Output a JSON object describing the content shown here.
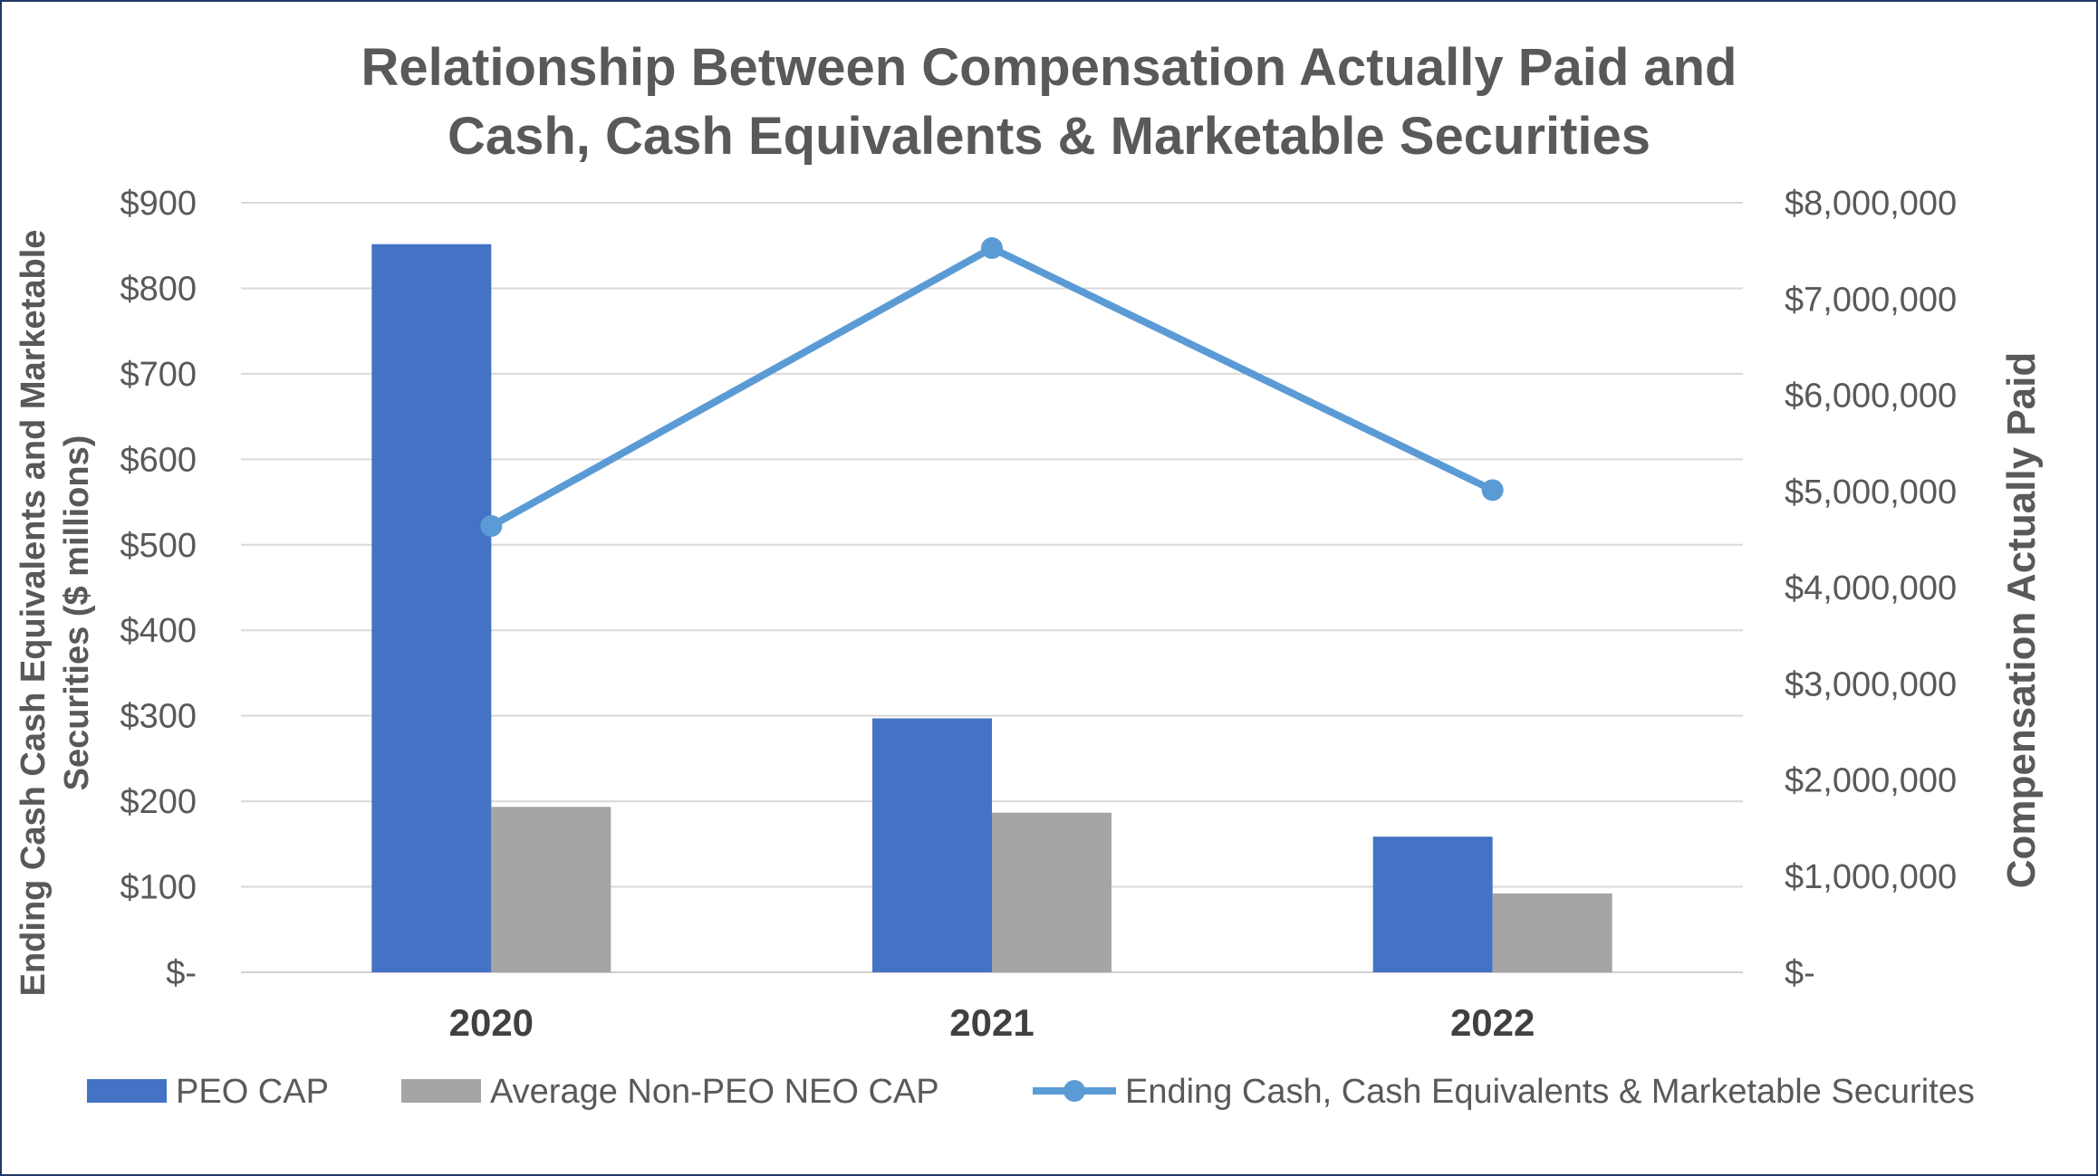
{
  "chart_data": {
    "type": "bar",
    "title_lines": [
      "Relationship Between Compensation Actually Paid and",
      "Cash, Cash Equivalents & Marketable Securities"
    ],
    "categories": [
      "2020",
      "2021",
      "2022"
    ],
    "series": [
      {
        "name": "PEO CAP",
        "type": "bar",
        "axis": "right",
        "color": "#4472c4",
        "values": [
          7570000,
          2640000,
          1410000
        ]
      },
      {
        "name": "Average Non-PEO NEO CAP",
        "type": "bar",
        "axis": "right",
        "color": "#a5a5a5",
        "values": [
          1720000,
          1660000,
          820000
        ]
      },
      {
        "name": "Ending Cash, Cash Equivalents & Marketable Securites",
        "type": "line",
        "axis": "left",
        "color": "#5b9bd5",
        "values": [
          522,
          847,
          564
        ]
      }
    ],
    "y_left": {
      "label_lines": [
        "Ending Cash Cash Equivalents and Marketable",
        "Securities ($ millions)"
      ],
      "ylim": [
        0,
        900
      ],
      "ticks": [
        0,
        100,
        200,
        300,
        400,
        500,
        600,
        700,
        800,
        900
      ],
      "tick_labels": [
        "$-",
        "$100",
        "$200",
        "$300",
        "$400",
        "$500",
        "$600",
        "$700",
        "$800",
        "$900"
      ]
    },
    "y_right": {
      "label": "Compensation Actually Paid",
      "ylim": [
        0,
        8000000
      ],
      "ticks": [
        0,
        1000000,
        2000000,
        3000000,
        4000000,
        5000000,
        6000000,
        7000000,
        8000000
      ],
      "tick_labels": [
        "$-",
        "$1,000,000",
        "$2,000,000",
        "$3,000,000",
        "$4,000,000",
        "$5,000,000",
        "$6,000,000",
        "$7,000,000",
        "$8,000,000"
      ]
    },
    "grid": true,
    "legend_position": "bottom"
  }
}
